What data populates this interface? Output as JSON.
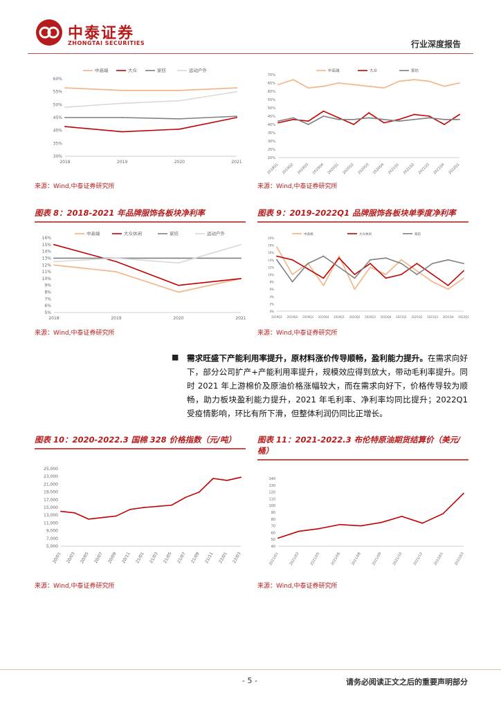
{
  "header": {
    "brand_cn": "中泰证券",
    "brand_en": "ZHONGTAI SECURITIES",
    "report_type": "行业深度报告",
    "colors": {
      "brand": "#b71c1c",
      "rule": "#c0504d"
    }
  },
  "sources": {
    "top_left": "来源：Wind,中泰证券研究所",
    "top_right": "来源：Wind,中泰证券研究所",
    "fig8": "来源：Wind,中泰证券研究所",
    "fig9": "来源：Wind,中泰证券研究所",
    "fig10": "来源：Wind,中泰证券研究所",
    "fig11": "来源：Wind,中泰证券研究所"
  },
  "figures": {
    "fig8_title": "图表 8：2018-2021 年品牌服饰各板块净利率",
    "fig9_title": "图表 9：2019-2022Q1 品牌服饰各板块单季度净利率",
    "fig10_title": "图表 10：2020-2022.3 国棉 328 价格指数（元/吨）",
    "fig11_title": "图表 11：2021-2022.3 布伦特原油期货结算价（美元/桶）"
  },
  "paragraph": {
    "bullet": "■",
    "bold": "需求旺盛下产能利用率提升，原材料涨价传导顺畅，盈利能力提升。",
    "body": "在需求向好下，部分公司扩产+产能利用率提升，规模效应得到放大，带动毛利率提升。同时 2021 年上游棉价及原油价格涨幅较大，而在需求向好下，价格传导较为顺畅，助力板块盈利能力提升，2021 年毛利率、净利率均同比提升；2022Q1 受疫情影响，环比有所下滑，但整体利润仍同比正增长。"
  },
  "footer": {
    "page": "- 5 -",
    "notice": "请务必阅读正文之后的重要声明部分"
  },
  "chart_data": [
    {
      "id": "top-left",
      "type": "line",
      "title": "",
      "categories": [
        "2018",
        "2019",
        "2020",
        "2021"
      ],
      "ylim": [
        30,
        60
      ],
      "yticks": [
        "30%",
        "35%",
        "40%",
        "45%",
        "50%",
        "55%",
        "60%"
      ],
      "series": [
        {
          "name": "中高端",
          "color": "#f4b183",
          "values": [
            56.5,
            55.5,
            55.5,
            56.5
          ]
        },
        {
          "name": "大众",
          "color": "#c00000",
          "values": [
            41.5,
            39.5,
            40.5,
            45
          ]
        },
        {
          "name": "家纺",
          "color": "#7f7f7f",
          "values": [
            45,
            45,
            44.5,
            45.5
          ]
        },
        {
          "name": "运动户外",
          "color": "#d9d9d9",
          "values": [
            49,
            50.5,
            51.5,
            55
          ]
        }
      ]
    },
    {
      "id": "top-right",
      "type": "line",
      "title": "",
      "categories": [
        "2019Q1",
        "2019Q2",
        "2019Q3",
        "2019Q4",
        "2020Q1",
        "2020Q2",
        "2020Q3",
        "2020Q4",
        "2021Q1",
        "2021Q2",
        "2021Q3",
        "2021Q4",
        "2022Q1"
      ],
      "ylim": [
        20,
        70
      ],
      "yticks": [
        "20%",
        "25%",
        "30%",
        "35%",
        "40%",
        "45%",
        "50%",
        "55%",
        "60%",
        "65%",
        "70%"
      ],
      "series": [
        {
          "name": "中高端",
          "color": "#f4b183",
          "values": [
            64,
            67,
            62,
            63,
            65,
            64,
            63,
            62,
            66,
            67,
            66,
            63,
            65
          ]
        },
        {
          "name": "大众",
          "color": "#c00000",
          "values": [
            41,
            43,
            42,
            48,
            44,
            40,
            47,
            41,
            43,
            46,
            45,
            40,
            46
          ]
        },
        {
          "name": "家纺",
          "color": "#7f7f7f",
          "values": [
            42,
            44,
            40,
            45,
            43,
            43,
            44,
            43,
            42,
            43,
            44,
            43,
            43
          ]
        }
      ]
    },
    {
      "id": "fig8",
      "type": "line",
      "title": "图表 8：2018-2021 年品牌服饰各板块净利率",
      "categories": [
        "2018",
        "2019",
        "2020",
        "2021"
      ],
      "ylim": [
        5,
        16
      ],
      "yticks": [
        "5%",
        "6%",
        "7%",
        "8%",
        "9%",
        "10%",
        "11%",
        "12%",
        "13%",
        "14%",
        "15%",
        "16%"
      ],
      "series": [
        {
          "name": "中高端",
          "color": "#f4b183",
          "values": [
            12,
            11,
            8,
            10
          ]
        },
        {
          "name": "大众休闲",
          "color": "#c00000",
          "values": [
            15,
            12.5,
            9,
            10
          ]
        },
        {
          "name": "家纺",
          "color": "#7f7f7f",
          "values": [
            13,
            13,
            13,
            13
          ]
        },
        {
          "name": "运动户外",
          "color": "#d9d9d9",
          "values": [
            12.5,
            13,
            12.3,
            15
          ]
        }
      ]
    },
    {
      "id": "fig9",
      "type": "line",
      "title": "图表 9：2019-2022Q1 品牌服饰各板块单季度净利率",
      "categories": [
        "2019Q1",
        "2019Q2",
        "2019Q3",
        "2019Q4",
        "2020Q1",
        "2020Q2",
        "2020Q3",
        "2020Q4",
        "2021Q1",
        "2021Q2",
        "2021Q3",
        "2021Q4",
        "2022Q1"
      ],
      "ylim": [
        0,
        20
      ],
      "yticks": [
        "0%",
        "2%",
        "4%",
        "6%",
        "8%",
        "10%",
        "12%",
        "14%",
        "16%",
        "18%",
        "20%"
      ],
      "series": [
        {
          "name": "中高端",
          "color": "#f4b183",
          "values": [
            17.5,
            10,
            13,
            7,
            15,
            6,
            12,
            10,
            14,
            11,
            8,
            6,
            9
          ]
        },
        {
          "name": "大众休闲",
          "color": "#c00000",
          "values": [
            15,
            14,
            11.5,
            9,
            14.5,
            10,
            13,
            9,
            10,
            13,
            10,
            7,
            11
          ]
        },
        {
          "name": "家纺",
          "color": "#7f7f7f",
          "values": [
            14,
            8,
            13,
            15,
            12,
            9,
            14,
            14.5,
            13,
            10,
            13,
            14,
            13
          ]
        }
      ]
    },
    {
      "id": "fig10",
      "type": "line",
      "title": "图表 10：2020-2022.3 国棉 328 价格指数（元/吨）",
      "categories": [
        "20/01",
        "20/03",
        "20/05",
        "20/07",
        "20/09",
        "20/11",
        "21/01",
        "21/03",
        "21/05",
        "21/07",
        "21/09",
        "21/11",
        "22/01",
        "22/03"
      ],
      "ylim": [
        5000,
        25000
      ],
      "yticks": [
        "5,000",
        "7,000",
        "9,000",
        "11,000",
        "13,000",
        "15,000",
        "17,000",
        "19,000",
        "21,000",
        "23,000",
        "25,000"
      ],
      "series": [
        {
          "name": "国棉328价格指数",
          "color": "#c00000",
          "values": [
            14000,
            13600,
            12000,
            12400,
            12800,
            14500,
            15000,
            15300,
            15600,
            17600,
            19000,
            22500,
            22000,
            22800
          ]
        }
      ]
    },
    {
      "id": "fig11",
      "type": "line",
      "title": "图表 11：2021-2022.3 布伦特原油期货结算价（美元/桶）",
      "categories": [
        "2021/01",
        "2021/03",
        "2021/05",
        "2021/06",
        "2021/08",
        "2021/09",
        "2021/10",
        "2021/12",
        "2022/01",
        "2022/03"
      ],
      "ylim": [
        40,
        140
      ],
      "yticks": [
        "40",
        "50",
        "60",
        "70",
        "80",
        "90",
        "100",
        "110",
        "120",
        "130",
        "140"
      ],
      "series": [
        {
          "name": "布伦特原油期货结算价",
          "color": "#c00000",
          "values": [
            52,
            62,
            66,
            72,
            70,
            75,
            84,
            74,
            88,
            118
          ]
        }
      ]
    }
  ]
}
